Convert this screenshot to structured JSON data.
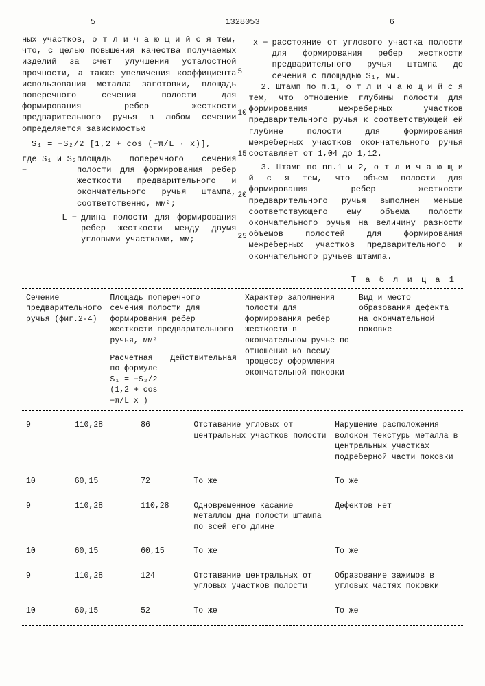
{
  "header": {
    "page_left": "5",
    "page_right": "6",
    "doc_number": "1328053"
  },
  "left_col": {
    "para1": "ных участков, о т л и ч а ю щ и й с я тем, что, с целью повышения качества получаемых изделий за счет улучшения усталостной прочности, а также увеличения коэффициента использования металла заготовки, площадь поперечного сечения полости для формирования ребер жесткости предварительного ручья в любом сечении определяется зависимостью",
    "formula": "S₁ = −S₂/2 [1,2 + cos (−π/L · x)],",
    "where_s": "площадь поперечного сечения полости для формирования ребер жесткости предварительного и окончательного ручья штампа, соответственно, мм²;",
    "where_l": "длина полости для формирования ребер жесткости между двумя угловыми участками, мм;",
    "where_s_label": "где S₁ и S₂ −",
    "where_l_label": "L −"
  },
  "right_col": {
    "where_x_label": "x −",
    "where_x": "расстояние от углового участка полости для формирования ребер жесткости предварительного ручья штампа до сечения с площадью S₁, мм.",
    "claim2": "2. Штамп по п.1, о т л и ч а ю щ и й с я тем, что отношение глубины полости для формирования межреберных участков предварительного ручья к соответствующей ей глубине полости для формирования межреберных участков окончательного ручья составляет от 1,04 до 1,12.",
    "claim3": "3. Штамп по пп.1 и 2, о т л и ч а ю щ и й с я тем, что объем полости для формирования ребер жесткости предварительного ручья выполнен меньше соответствующего ему объема полости окончательного ручья на величину разности объемов полостей для формирования межреберных участков предварительного и окончательного ручьев штампа."
  },
  "line_markers": [
    "5",
    "10",
    "15",
    "20",
    "25"
  ],
  "table": {
    "caption": "Т а б л и ц а 1",
    "col1_h": "Сечение предварительного ручья (фиг.2-4)",
    "col2_h": "Площадь поперечного сечения полости для формирования ребер жесткости предварительного ручья, мм²",
    "col2a_h": "Расчетная по формуле",
    "col2a_formula": "S₁ = −S₂/2 (1,2 + cos −π/L x )",
    "col2b_h": "Действительная",
    "col3_h": "Характер заполнения полости для формирования ребер жесткости в окончательном ручье по отношению ко всему процессу оформления окончательной поковки",
    "col4_h": "Вид и место образования дефекта на окончательной поковке",
    "rows": [
      {
        "c1": "9",
        "c2a": "110,28",
        "c2b": "86",
        "c3": "Отставание угловых от центральных участков полости",
        "c4": "Нарушение расположения волокон текстуры металла в центральных участках подреберной части поковки"
      },
      {
        "c1": "10",
        "c2a": "60,15",
        "c2b": "72",
        "c3": "То же",
        "c4": "То же"
      },
      {
        "c1": "9",
        "c2a": "110,28",
        "c2b": "110,28",
        "c3": "Одновременное касание металлом дна полости штампа по всей его длине",
        "c4": "Дефектов нет"
      },
      {
        "c1": "10",
        "c2a": "60,15",
        "c2b": "60,15",
        "c3": "То же",
        "c4": "То же"
      },
      {
        "c1": "9",
        "c2a": "110,28",
        "c2b": "124",
        "c3": "Отставание центральных от угловых участков полости",
        "c4": "Образование зажимов в угловых частях поковки"
      },
      {
        "c1": "10",
        "c2a": "60,15",
        "c2b": "52",
        "c3": "То же",
        "c4": "То же"
      }
    ]
  },
  "layout": {
    "col_widths": [
      "11%",
      "15%",
      "12%",
      "32%",
      "30%"
    ]
  }
}
